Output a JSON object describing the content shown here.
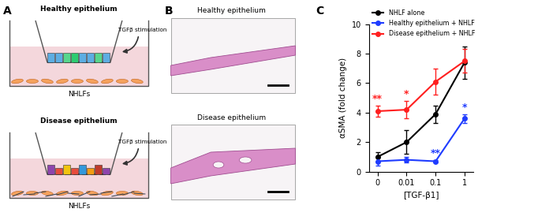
{
  "panels": {
    "A": {
      "label": "A",
      "healthy": {
        "title": "Healthy epithelium",
        "stimulus": "TGFβ stimulation",
        "cells": "NHLFs"
      },
      "disease": {
        "title": "Disease epithelium",
        "stimulus": "TGFβ stimulation",
        "cells": "NHLFs"
      }
    },
    "B": {
      "label": "B",
      "images": [
        "Healthy epithelium",
        "Disease epithelium"
      ]
    },
    "C": {
      "label": "C"
    }
  },
  "chart_data": {
    "type": "line",
    "x_label": "[TGF-β1]",
    "y_label": "αSMA (fold change)",
    "categories": [
      "0",
      "0.01",
      "0.1",
      "1"
    ],
    "ylim": [
      0,
      10
    ],
    "yticks": [
      0,
      2,
      4,
      6,
      8,
      10
    ],
    "legend": "upper left",
    "marker": "o",
    "series": [
      {
        "name": "NHLF alone",
        "color": "#000000",
        "values": [
          1.0,
          2.0,
          3.9,
          7.4
        ],
        "errors": [
          0.3,
          0.8,
          0.6,
          1.1
        ]
      },
      {
        "name": "Healthy epithelium + NHLF",
        "color": "#1f3cff",
        "values": [
          0.7,
          0.8,
          0.7,
          3.6
        ],
        "errors": [
          0.3,
          0.2,
          0.1,
          0.3
        ]
      },
      {
        "name": "Disease epithelium + NHLF",
        "color": "#ff1f1f",
        "values": [
          4.1,
          4.2,
          6.1,
          7.5
        ],
        "errors": [
          0.4,
          0.6,
          0.9,
          0.8
        ]
      }
    ],
    "annotations": [
      {
        "series": "Disease epithelium + NHLF",
        "category": "0",
        "text": "**"
      },
      {
        "series": "Disease epithelium + NHLF",
        "category": "0.01",
        "text": "*"
      },
      {
        "series": "Healthy epithelium + NHLF",
        "category": "0.1",
        "text": "**"
      },
      {
        "series": "Healthy epithelium + NHLF",
        "category": "1",
        "text": "*"
      }
    ]
  }
}
